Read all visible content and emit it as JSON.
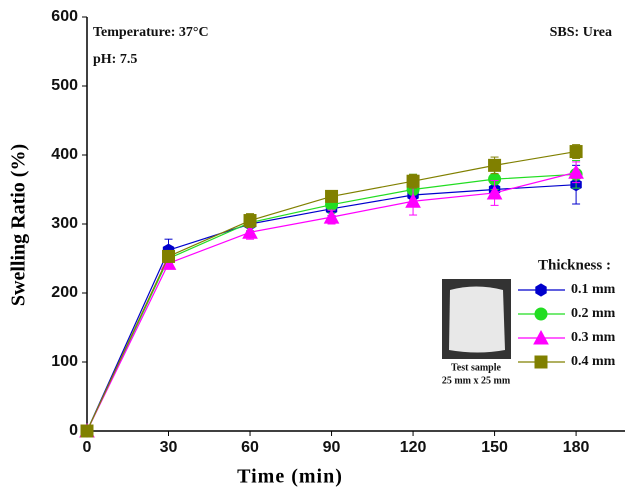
{
  "chart_data": {
    "type": "line",
    "xlabel": "Time (min)",
    "ylabel": "Swelling Ratio (%)",
    "annotations": [
      "Temperature: 37°C",
      "pH: 7.5",
      "SBS: Urea"
    ],
    "inset_caption": [
      "Test sample",
      "25 mm x 25 mm"
    ],
    "legend_title": "Thickness :",
    "x": [
      0,
      30,
      60,
      90,
      120,
      150,
      180
    ],
    "xlim": [
      0,
      198
    ],
    "xticks": [
      0,
      30,
      60,
      90,
      120,
      150,
      180
    ],
    "ylim": [
      0,
      600
    ],
    "yticks": [
      0,
      100,
      200,
      300,
      400,
      500,
      600
    ],
    "series": [
      {
        "name": "0.1 mm",
        "color": "#0000cc",
        "marker": "hexagon",
        "values": [
          0,
          262,
          300,
          322,
          342,
          350,
          357
        ],
        "errors": [
          0,
          16,
          10,
          10,
          12,
          12,
          28
        ]
      },
      {
        "name": "0.2 mm",
        "color": "#22dd22",
        "marker": "circle",
        "values": [
          0,
          250,
          302,
          328,
          350,
          365,
          372
        ],
        "errors": [
          0,
          10,
          12,
          12,
          22,
          15,
          20
        ]
      },
      {
        "name": "0.3 mm",
        "color": "#ff00ff",
        "marker": "triangle",
        "values": [
          0,
          243,
          288,
          310,
          333,
          345,
          375
        ],
        "errors": [
          0,
          8,
          10,
          10,
          20,
          18,
          15
        ]
      },
      {
        "name": "0.4 mm",
        "color": "#808000",
        "marker": "square",
        "values": [
          0,
          253,
          305,
          340,
          362,
          385,
          405
        ],
        "errors": [
          0,
          8,
          10,
          8,
          10,
          12,
          10
        ]
      }
    ]
  }
}
